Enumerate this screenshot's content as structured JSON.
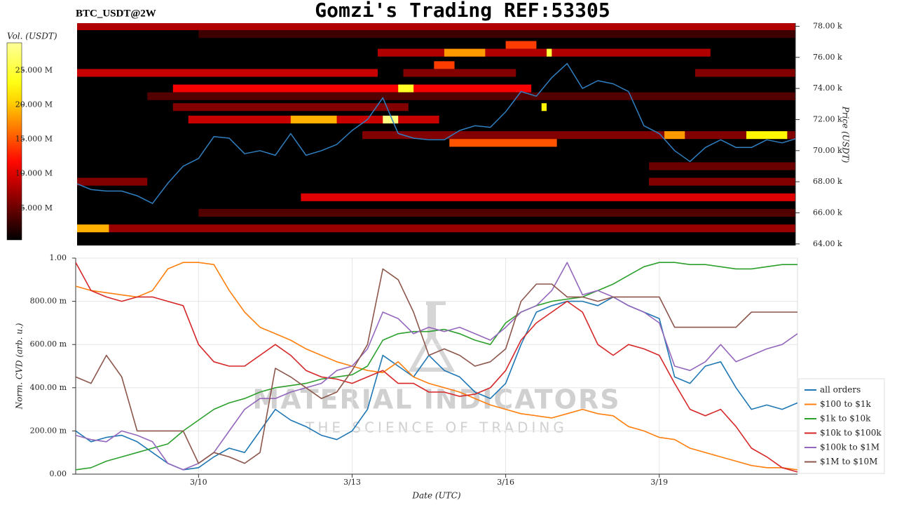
{
  "chart_data": [
    {
      "type": "heatmap",
      "title": "Gomzi's Trading REF:53305",
      "subtitle": "BTC_USDT@2W",
      "ylabel": "Price (USDT)",
      "colorbar_label": "Vol. (USDT)",
      "clim": [
        0.4,
        29
      ],
      "cticks": [
        {
          "value": 5,
          "label": "5.000 M"
        },
        {
          "value": 10,
          "label": "10.000 M"
        },
        {
          "value": 15,
          "label": "15.000 M"
        },
        {
          "value": 20,
          "label": "20.000 M"
        },
        {
          "value": 25,
          "label": "25.000 M"
        }
      ],
      "xlim": [
        7.6,
        21.7
      ],
      "ylim": [
        63900,
        78200
      ],
      "yticks": [
        {
          "value": 64000,
          "label": "64.00 k"
        },
        {
          "value": 66000,
          "label": "66.00 k"
        },
        {
          "value": 68000,
          "label": "68.00 k"
        },
        {
          "value": 70000,
          "label": "70.00 k"
        },
        {
          "value": 72000,
          "label": "72.00 k"
        },
        {
          "value": 74000,
          "label": "74.00 k"
        },
        {
          "value": 76000,
          "label": "76.00 k"
        },
        {
          "value": 78000,
          "label": "78.00 k"
        }
      ],
      "bands": [
        {
          "price": 78000,
          "start": 7.6,
          "end": 21.7,
          "volume": 8
        },
        {
          "price": 77500,
          "start": 10.0,
          "end": 21.7,
          "volume": 3
        },
        {
          "price": 76800,
          "start": 16.0,
          "end": 16.6,
          "volume": 14
        },
        {
          "price": 76300,
          "start": 13.5,
          "end": 20.0,
          "volume": 8
        },
        {
          "price": 76300,
          "start": 14.8,
          "end": 15.6,
          "volume": 18
        },
        {
          "price": 76300,
          "start": 16.8,
          "end": 16.9,
          "volume": 25
        },
        {
          "price": 75500,
          "start": 14.6,
          "end": 15.0,
          "volume": 14
        },
        {
          "price": 75000,
          "start": 7.6,
          "end": 13.5,
          "volume": 9
        },
        {
          "price": 75000,
          "start": 14.0,
          "end": 16.2,
          "volume": 6
        },
        {
          "price": 75000,
          "start": 19.7,
          "end": 21.7,
          "volume": 6
        },
        {
          "price": 74000,
          "start": 9.5,
          "end": 16.5,
          "volume": 11
        },
        {
          "price": 74000,
          "start": 13.9,
          "end": 14.2,
          "volume": 24
        },
        {
          "price": 73500,
          "start": 9.0,
          "end": 21.7,
          "volume": 4
        },
        {
          "price": 72800,
          "start": 9.5,
          "end": 14.1,
          "volume": 6
        },
        {
          "price": 72800,
          "start": 16.7,
          "end": 16.8,
          "volume": 22
        },
        {
          "price": 72000,
          "start": 9.8,
          "end": 14.7,
          "volume": 9
        },
        {
          "price": 72000,
          "start": 11.8,
          "end": 12.7,
          "volume": 19
        },
        {
          "price": 72000,
          "start": 13.6,
          "end": 13.9,
          "volume": 28
        },
        {
          "price": 71000,
          "start": 13.2,
          "end": 21.7,
          "volume": 6
        },
        {
          "price": 71000,
          "start": 19.1,
          "end": 19.5,
          "volume": 18
        },
        {
          "price": 71000,
          "start": 20.7,
          "end": 21.5,
          "volume": 22
        },
        {
          "price": 70500,
          "start": 14.9,
          "end": 17.0,
          "volume": 15
        },
        {
          "price": 69000,
          "start": 18.8,
          "end": 21.7,
          "volume": 5
        },
        {
          "price": 68000,
          "start": 7.6,
          "end": 9.0,
          "volume": 6
        },
        {
          "price": 68000,
          "start": 18.8,
          "end": 21.7,
          "volume": 6
        },
        {
          "price": 67000,
          "start": 12.0,
          "end": 21.7,
          "volume": 10
        },
        {
          "price": 66000,
          "start": 10.0,
          "end": 21.7,
          "volume": 4
        },
        {
          "price": 65000,
          "start": 7.6,
          "end": 21.7,
          "volume": 7
        },
        {
          "price": 65000,
          "start": 7.6,
          "end": 8.25,
          "volume": 19
        }
      ],
      "x": [
        7.6,
        7.9,
        8.2,
        8.5,
        8.8,
        9.1,
        9.4,
        9.7,
        10,
        10.3,
        10.6,
        10.9,
        11.2,
        11.5,
        11.8,
        12.1,
        12.4,
        12.7,
        13,
        13.3,
        13.6,
        13.9,
        14.2,
        14.5,
        14.8,
        15.1,
        15.4,
        15.7,
        16,
        16.3,
        16.6,
        16.9,
        17.2,
        17.5,
        17.8,
        18.1,
        18.4,
        18.7,
        19,
        19.3,
        19.6,
        19.9,
        20.2,
        20.5,
        20.8,
        21.1,
        21.4,
        21.7
      ],
      "series": [
        {
          "color": "#2f7fc1",
          "values": [
            67900,
            67500,
            67400,
            67400,
            67100,
            66600,
            67900,
            69000,
            69500,
            70900,
            70800,
            69800,
            70000,
            69700,
            71100,
            69700,
            70000,
            70400,
            71300,
            72000,
            73400,
            71100,
            70800,
            70700,
            70700,
            71300,
            71600,
            71500,
            72500,
            73800,
            73500,
            74700,
            75600,
            74000,
            74500,
            74300,
            73800,
            71600,
            71100,
            70000,
            69300,
            70200,
            70700,
            70200,
            70200,
            70700,
            70500,
            70800
          ]
        }
      ]
    },
    {
      "type": "line",
      "xlabel": "Date (UTC)",
      "ylabel": "Norm. CVD (arb. u.)",
      "watermark": {
        "title": "MATERIAL INDICATORS",
        "subtitle": "THE SCIENCE OF TRADING"
      },
      "grid": true,
      "xlim": [
        7.6,
        21.7
      ],
      "xticks": [
        {
          "value": 10,
          "label": "3/10"
        },
        {
          "value": 13,
          "label": "3/13"
        },
        {
          "value": 16,
          "label": "3/16"
        },
        {
          "value": 19,
          "label": "3/19"
        }
      ],
      "ylim": [
        0,
        1
      ],
      "yticks": [
        {
          "value": 0,
          "label": "0.00"
        },
        {
          "value": 0.2,
          "label": "200.00 m"
        },
        {
          "value": 0.4,
          "label": "400.00 m"
        },
        {
          "value": 0.6,
          "label": "600.00 m"
        },
        {
          "value": 0.8,
          "label": "800.00 m"
        },
        {
          "value": 1,
          "label": "1.00"
        }
      ],
      "x": [
        7.6,
        7.9,
        8.2,
        8.5,
        8.8,
        9.1,
        9.4,
        9.7,
        10,
        10.3,
        10.6,
        10.9,
        11.2,
        11.5,
        11.8,
        12.1,
        12.4,
        12.7,
        13,
        13.3,
        13.6,
        13.9,
        14.2,
        14.5,
        14.8,
        15.1,
        15.4,
        15.7,
        16,
        16.3,
        16.6,
        16.9,
        17.2,
        17.5,
        17.8,
        18.1,
        18.4,
        18.7,
        19,
        19.3,
        19.6,
        19.9,
        20.2,
        20.5,
        20.8,
        21.1,
        21.4,
        21.7
      ],
      "series": [
        {
          "name": "all orders",
          "color": "#1f77b4",
          "values": [
            0.2,
            0.15,
            0.17,
            0.18,
            0.15,
            0.1,
            0.05,
            0.02,
            0.03,
            0.08,
            0.12,
            0.1,
            0.2,
            0.3,
            0.25,
            0.22,
            0.18,
            0.16,
            0.2,
            0.3,
            0.55,
            0.5,
            0.45,
            0.55,
            0.48,
            0.45,
            0.38,
            0.35,
            0.42,
            0.6,
            0.75,
            0.78,
            0.8,
            0.8,
            0.78,
            0.82,
            0.78,
            0.75,
            0.72,
            0.45,
            0.42,
            0.5,
            0.52,
            0.4,
            0.3,
            0.32,
            0.3,
            0.33
          ]
        },
        {
          "name": "$100 to $1k",
          "color": "#ff7f0e",
          "values": [
            0.87,
            0.85,
            0.84,
            0.83,
            0.82,
            0.85,
            0.95,
            0.98,
            0.98,
            0.97,
            0.85,
            0.75,
            0.68,
            0.65,
            0.62,
            0.58,
            0.55,
            0.52,
            0.5,
            0.48,
            0.47,
            0.52,
            0.45,
            0.42,
            0.4,
            0.38,
            0.35,
            0.32,
            0.3,
            0.28,
            0.27,
            0.26,
            0.28,
            0.3,
            0.28,
            0.27,
            0.22,
            0.2,
            0.17,
            0.16,
            0.12,
            0.1,
            0.08,
            0.06,
            0.04,
            0.03,
            0.03,
            0.02
          ]
        },
        {
          "name": "$1k to $10k",
          "color": "#2ca02c",
          "values": [
            0.02,
            0.03,
            0.06,
            0.08,
            0.1,
            0.12,
            0.14,
            0.2,
            0.25,
            0.3,
            0.33,
            0.35,
            0.38,
            0.4,
            0.41,
            0.42,
            0.44,
            0.45,
            0.46,
            0.5,
            0.62,
            0.65,
            0.66,
            0.66,
            0.67,
            0.65,
            0.62,
            0.6,
            0.7,
            0.75,
            0.78,
            0.8,
            0.81,
            0.82,
            0.85,
            0.88,
            0.92,
            0.96,
            0.98,
            0.98,
            0.97,
            0.97,
            0.96,
            0.95,
            0.95,
            0.96,
            0.97,
            0.97
          ]
        },
        {
          "name": "$10k to $100k",
          "color": "#d62728",
          "values": [
            0.98,
            0.85,
            0.82,
            0.8,
            0.82,
            0.82,
            0.8,
            0.78,
            0.6,
            0.52,
            0.5,
            0.5,
            0.55,
            0.6,
            0.55,
            0.48,
            0.45,
            0.44,
            0.42,
            0.45,
            0.48,
            0.42,
            0.42,
            0.38,
            0.38,
            0.36,
            0.37,
            0.4,
            0.48,
            0.62,
            0.7,
            0.75,
            0.8,
            0.75,
            0.6,
            0.55,
            0.6,
            0.58,
            0.55,
            0.42,
            0.3,
            0.27,
            0.3,
            0.22,
            0.12,
            0.08,
            0.03,
            0.01
          ]
        },
        {
          "name": "$100k to $1M",
          "color": "#9467bd",
          "values": [
            0.18,
            0.16,
            0.15,
            0.2,
            0.18,
            0.15,
            0.05,
            0.02,
            0.05,
            0.1,
            0.2,
            0.3,
            0.35,
            0.35,
            0.38,
            0.4,
            0.42,
            0.48,
            0.5,
            0.58,
            0.75,
            0.72,
            0.65,
            0.68,
            0.66,
            0.68,
            0.65,
            0.62,
            0.68,
            0.75,
            0.78,
            0.85,
            0.98,
            0.83,
            0.85,
            0.82,
            0.78,
            0.75,
            0.7,
            0.5,
            0.48,
            0.52,
            0.6,
            0.52,
            0.55,
            0.58,
            0.6,
            0.65
          ]
        },
        {
          "name": "$1M to $10M",
          "color": "#8c564b",
          "values": [
            0.45,
            0.42,
            0.55,
            0.45,
            0.2,
            0.2,
            0.2,
            0.2,
            0.05,
            0.1,
            0.08,
            0.05,
            0.1,
            0.49,
            0.45,
            0.4,
            0.35,
            0.38,
            0.48,
            0.6,
            0.95,
            0.9,
            0.75,
            0.55,
            0.58,
            0.55,
            0.5,
            0.52,
            0.58,
            0.8,
            0.88,
            0.88,
            0.82,
            0.82,
            0.8,
            0.82,
            0.82,
            0.82,
            0.82,
            0.68,
            0.68,
            0.68,
            0.68,
            0.68,
            0.75,
            0.75,
            0.75,
            0.75
          ]
        }
      ]
    }
  ]
}
